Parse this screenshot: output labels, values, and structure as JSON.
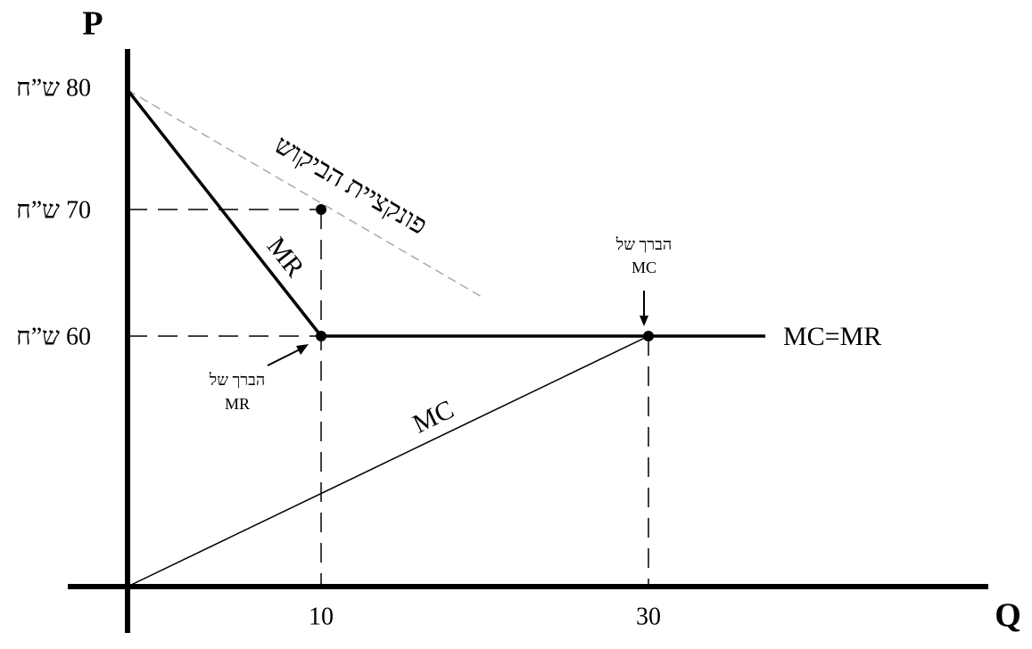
{
  "axes": {
    "y_label": "P",
    "x_label": "Q"
  },
  "y_ticks": [
    "80 ש”ח",
    "70 ש”ח",
    "60 ש”ח"
  ],
  "x_ticks": [
    "10",
    "30"
  ],
  "curves": {
    "demand": "פונקציית הביקוש",
    "mr": "MR",
    "mc": "MC",
    "mc_mr": "MC=MR"
  },
  "annotations": {
    "mr_kink": [
      "הברך של",
      "MR"
    ],
    "mc_kink": [
      "הברך של",
      "MC"
    ]
  }
}
